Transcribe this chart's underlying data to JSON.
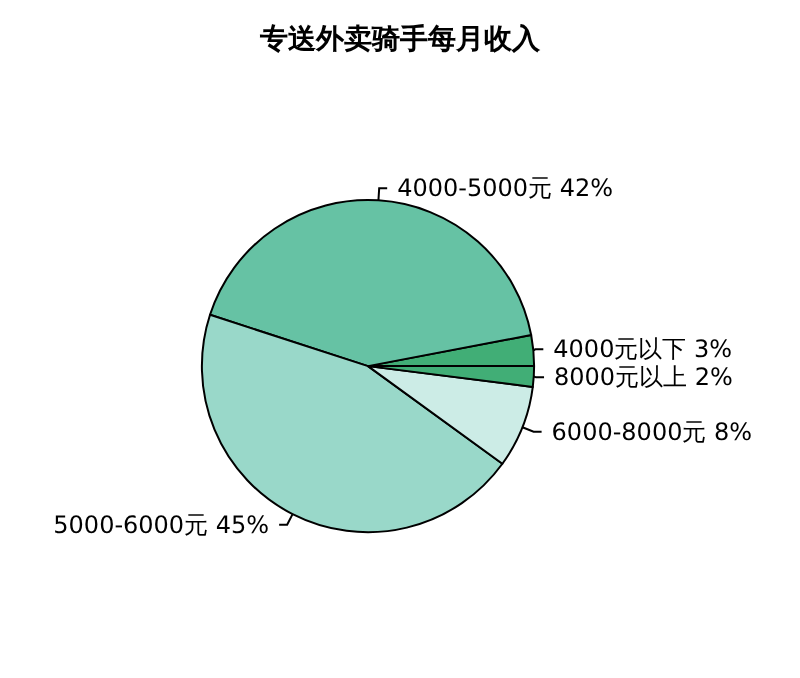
{
  "chart_data": {
    "type": "pie",
    "title": "专送外卖骑手每月收入",
    "categories": [
      "4000元以下",
      "4000-5000元",
      "5000-6000元",
      "6000-8000元",
      "8000元以上"
    ],
    "values": [
      3,
      42,
      45,
      8,
      2
    ],
    "value_labels": [
      "3%",
      "42%",
      "45%",
      "8%",
      "2%"
    ],
    "colors": [
      "#41ae76",
      "#66c2a4",
      "#99d8c9",
      "#ccece6",
      "#41ae76"
    ],
    "legend": false
  }
}
